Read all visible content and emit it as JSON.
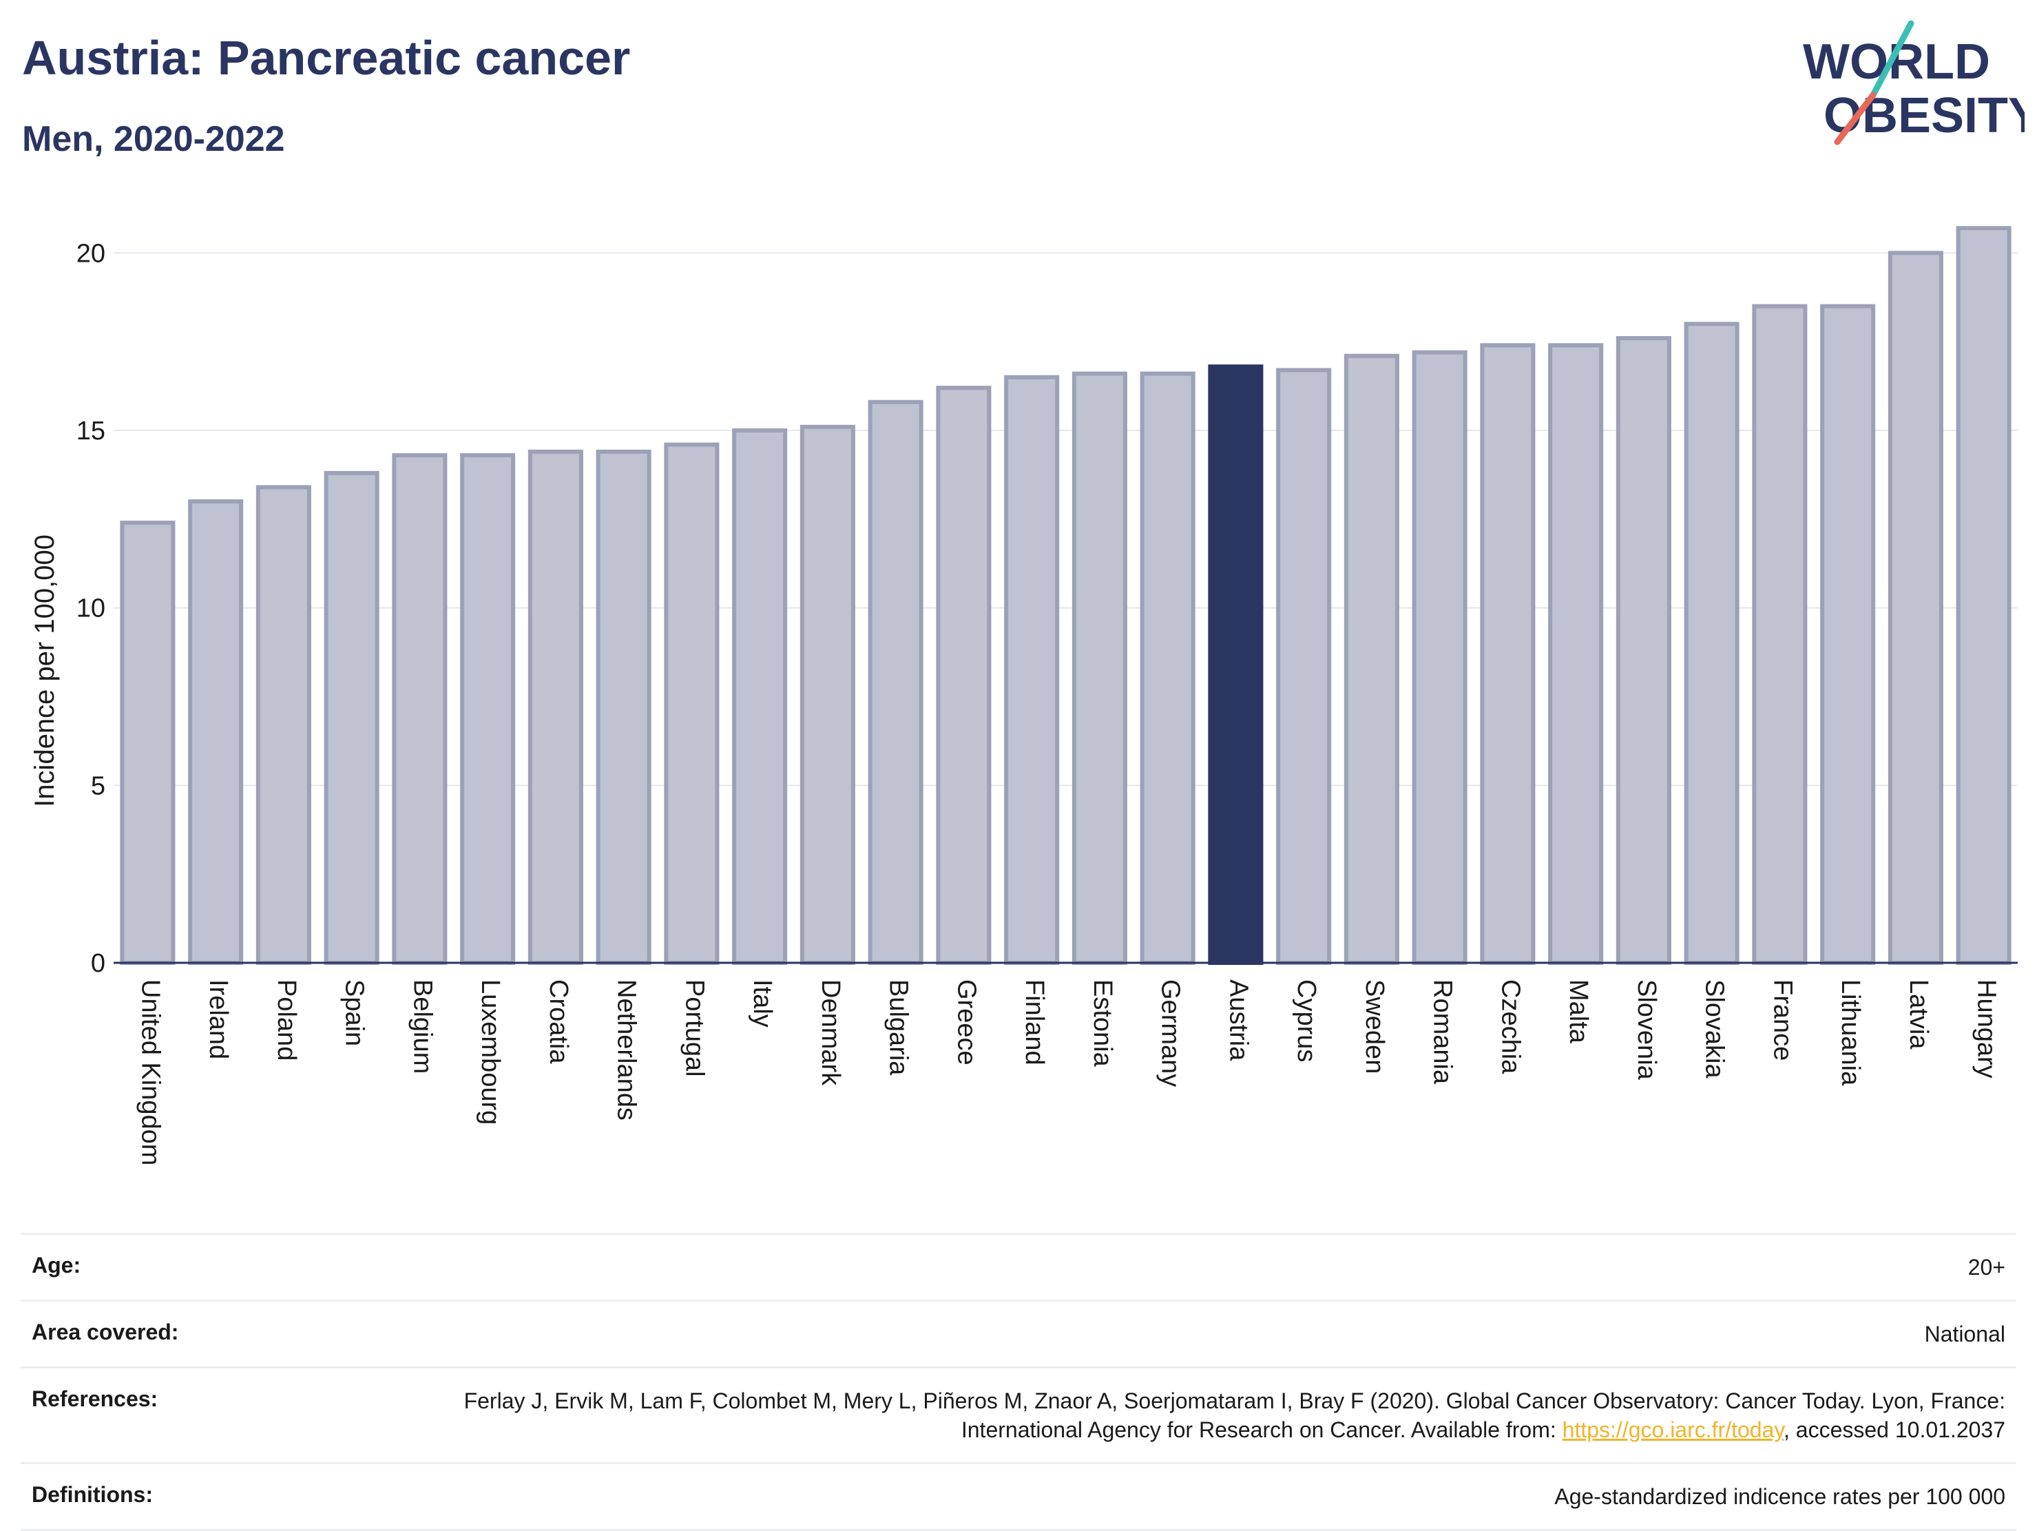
{
  "header": {
    "title": "Austria: Pancreatic cancer",
    "subtitle": "Men, 2020-2022"
  },
  "logo": {
    "line1": "WORLD",
    "line2": "OBESITY",
    "accent_teal": "#3bbfb5",
    "accent_coral": "#e8685a",
    "text_color": "#2b3561"
  },
  "chart_data": {
    "type": "bar",
    "ylabel": "Incidence per 100,000",
    "xlabel": "",
    "ylim": [
      0,
      21.5
    ],
    "yticks": [
      0,
      5,
      10,
      15,
      20
    ],
    "grid": true,
    "highlight": "Austria",
    "colors": {
      "bar": "#bfc2d0",
      "bar_border": "#9ca1b8",
      "highlight": "#2b3561"
    },
    "categories": [
      "United Kingdom",
      "Ireland",
      "Poland",
      "Spain",
      "Belgium",
      "Luxembourg",
      "Croatia",
      "Netherlands",
      "Portugal",
      "Italy",
      "Denmark",
      "Bulgaria",
      "Greece",
      "Finland",
      "Estonia",
      "Germany",
      "Austria",
      "Cyprus",
      "Sweden",
      "Romania",
      "Czechia",
      "Malta",
      "Slovenia",
      "Slovakia",
      "France",
      "Lithuania",
      "Latvia",
      "Hungary"
    ],
    "values": [
      12.4,
      13.0,
      13.4,
      13.8,
      14.3,
      14.3,
      14.4,
      14.4,
      14.6,
      15.0,
      15.1,
      15.8,
      16.2,
      16.5,
      16.6,
      16.6,
      16.8,
      16.7,
      17.1,
      17.2,
      17.4,
      17.4,
      17.6,
      18.0,
      18.5,
      18.5,
      20.0,
      20.7
    ]
  },
  "meta": {
    "age_label": "Age:",
    "age_value": "20+",
    "area_label": "Area covered:",
    "area_value": "National",
    "references_label": "References:",
    "references_text": "Ferlay J, Ervik M, Lam F, Colombet M, Mery L, Piñeros M, Znaor A, Soerjomataram I, Bray F (2020). Global Cancer Observatory: Cancer Today. Lyon, France: International Agency for Research on Cancer. Available from:",
    "references_link": "https://gco.iarc.fr/today",
    "references_suffix": ", accessed 10.01.2037",
    "definitions_label": "Definitions:",
    "definitions_value": "Age-standardized indicence rates per 100 000"
  }
}
